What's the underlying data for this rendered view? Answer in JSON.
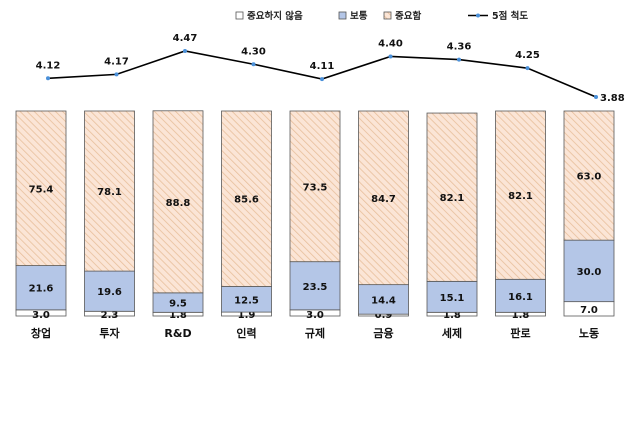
{
  "chart_data": {
    "type": "bar",
    "stacked": true,
    "categories": [
      "창업",
      "투자",
      "R&D",
      "인력",
      "규제",
      "금융",
      "세제",
      "판로",
      "노동"
    ],
    "series": [
      {
        "name": "중요하지 않음",
        "values": [
          3.0,
          2.3,
          1.8,
          1.9,
          3.0,
          0.9,
          1.8,
          1.8,
          7.0
        ],
        "color": "#ffffff"
      },
      {
        "name": "보통",
        "values": [
          21.6,
          19.6,
          9.5,
          12.5,
          23.5,
          14.4,
          15.1,
          16.1,
          30.0
        ],
        "color": "#b4c6e7"
      },
      {
        "name": "중요함",
        "values": [
          75.4,
          78.1,
          88.8,
          85.6,
          73.5,
          84.7,
          82.1,
          82.1,
          63.0
        ],
        "color": "#fbe5d6"
      }
    ],
    "line_series": {
      "name": "5점 척도",
      "values": [
        4.12,
        4.17,
        4.47,
        4.3,
        4.11,
        4.4,
        4.36,
        4.25,
        3.88
      ],
      "color": "#000000"
    },
    "value_labels": {
      "not_important": [
        "3.0",
        "2.3",
        "1.8",
        "1.9",
        "3.0",
        "0.9",
        "1.8",
        "1.8",
        "7.0"
      ],
      "normal": [
        "21.6",
        "19.6",
        "9.5",
        "12.5",
        "23.5",
        "14.4",
        "15.1",
        "16.1",
        "30.0"
      ],
      "important": [
        "75.4",
        "78.1",
        "88.8",
        "85.6",
        "73.5",
        "84.7",
        "82.1",
        "82.1",
        "63.0"
      ],
      "scale": [
        "4.12",
        "4.17",
        "4.47",
        "4.30",
        "4.11",
        "4.40",
        "4.36",
        "4.25",
        "3.88"
      ]
    },
    "ylim": [
      0,
      100
    ],
    "line_ylim": [
      3.88,
      4.47
    ],
    "legend": [
      "중요하지 않음",
      "보통",
      "중요함",
      "5점 척도"
    ],
    "legend_position": "top-right",
    "grid": false,
    "title": "",
    "xlabel": "",
    "ylabel": ""
  }
}
